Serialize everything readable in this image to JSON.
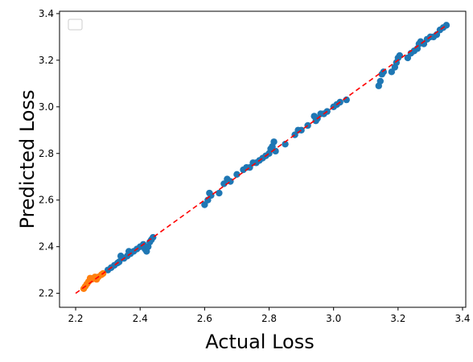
{
  "chart_data": {
    "type": "scatter",
    "xlabel": "Actual Loss",
    "ylabel": "Predicted Loss",
    "xlim": [
      2.15,
      3.41
    ],
    "ylim": [
      2.14,
      3.41
    ],
    "xticks": [
      "2.2",
      "2.4",
      "2.6",
      "2.8",
      "3.0",
      "3.2",
      "3.4"
    ],
    "yticks": [
      "2.2",
      "2.4",
      "2.6",
      "2.8",
      "3.0",
      "3.2",
      "3.4"
    ],
    "grid": false,
    "legend": "top-left",
    "colors": {
      "blue": "#1f77b4",
      "orange": "#ff7f0e",
      "diagonal": "#ff0000"
    },
    "reference_line": {
      "style": "dashed",
      "from": [
        2.2,
        2.2
      ],
      "to": [
        3.35,
        3.35
      ]
    },
    "series": [
      {
        "color": "#1f77b4",
        "points": [
          [
            2.3,
            2.3
          ],
          [
            2.31,
            2.31
          ],
          [
            2.32,
            2.32
          ],
          [
            2.33,
            2.33
          ],
          [
            2.335,
            2.335
          ],
          [
            2.34,
            2.36
          ],
          [
            2.35,
            2.35
          ],
          [
            2.36,
            2.36
          ],
          [
            2.365,
            2.38
          ],
          [
            2.37,
            2.37
          ],
          [
            2.38,
            2.38
          ],
          [
            2.39,
            2.39
          ],
          [
            2.4,
            2.4
          ],
          [
            2.41,
            2.41
          ],
          [
            2.415,
            2.39
          ],
          [
            2.42,
            2.38
          ],
          [
            2.425,
            2.4
          ],
          [
            2.43,
            2.42
          ],
          [
            2.435,
            2.43
          ],
          [
            2.44,
            2.44
          ],
          [
            2.6,
            2.58
          ],
          [
            2.61,
            2.6
          ],
          [
            2.615,
            2.63
          ],
          [
            2.62,
            2.62
          ],
          [
            2.645,
            2.63
          ],
          [
            2.66,
            2.67
          ],
          [
            2.67,
            2.69
          ],
          [
            2.68,
            2.68
          ],
          [
            2.7,
            2.71
          ],
          [
            2.72,
            2.73
          ],
          [
            2.73,
            2.74
          ],
          [
            2.74,
            2.74
          ],
          [
            2.75,
            2.76
          ],
          [
            2.76,
            2.76
          ],
          [
            2.77,
            2.77
          ],
          [
            2.78,
            2.78
          ],
          [
            2.79,
            2.79
          ],
          [
            2.8,
            2.8
          ],
          [
            2.805,
            2.82
          ],
          [
            2.81,
            2.83
          ],
          [
            2.815,
            2.85
          ],
          [
            2.82,
            2.81
          ],
          [
            2.85,
            2.84
          ],
          [
            2.88,
            2.88
          ],
          [
            2.89,
            2.9
          ],
          [
            2.9,
            2.9
          ],
          [
            2.92,
            2.92
          ],
          [
            2.94,
            2.96
          ],
          [
            2.945,
            2.94
          ],
          [
            2.95,
            2.95
          ],
          [
            2.96,
            2.97
          ],
          [
            2.97,
            2.97
          ],
          [
            2.98,
            2.98
          ],
          [
            3.0,
            3.0
          ],
          [
            3.01,
            3.01
          ],
          [
            3.02,
            3.02
          ],
          [
            3.04,
            3.03
          ],
          [
            3.14,
            3.09
          ],
          [
            3.145,
            3.11
          ],
          [
            3.15,
            3.14
          ],
          [
            3.155,
            3.15
          ],
          [
            3.18,
            3.15
          ],
          [
            3.19,
            3.17
          ],
          [
            3.195,
            3.19
          ],
          [
            3.2,
            3.21
          ],
          [
            3.205,
            3.22
          ],
          [
            3.23,
            3.21
          ],
          [
            3.24,
            3.23
          ],
          [
            3.25,
            3.24
          ],
          [
            3.26,
            3.25
          ],
          [
            3.265,
            3.27
          ],
          [
            3.27,
            3.28
          ],
          [
            3.28,
            3.27
          ],
          [
            3.29,
            3.29
          ],
          [
            3.3,
            3.3
          ],
          [
            3.31,
            3.3
          ],
          [
            3.32,
            3.31
          ],
          [
            3.33,
            3.33
          ],
          [
            3.34,
            3.34
          ],
          [
            3.35,
            3.35
          ]
        ]
      },
      {
        "color": "#ff7f0e",
        "points": [
          [
            2.225,
            2.22
          ],
          [
            2.23,
            2.23
          ],
          [
            2.235,
            2.24
          ],
          [
            2.24,
            2.25
          ],
          [
            2.245,
            2.265
          ],
          [
            2.25,
            2.26
          ],
          [
            2.255,
            2.265
          ],
          [
            2.26,
            2.27
          ],
          [
            2.265,
            2.26
          ],
          [
            2.27,
            2.27
          ],
          [
            2.28,
            2.28
          ],
          [
            2.285,
            2.285
          ]
        ]
      }
    ]
  }
}
